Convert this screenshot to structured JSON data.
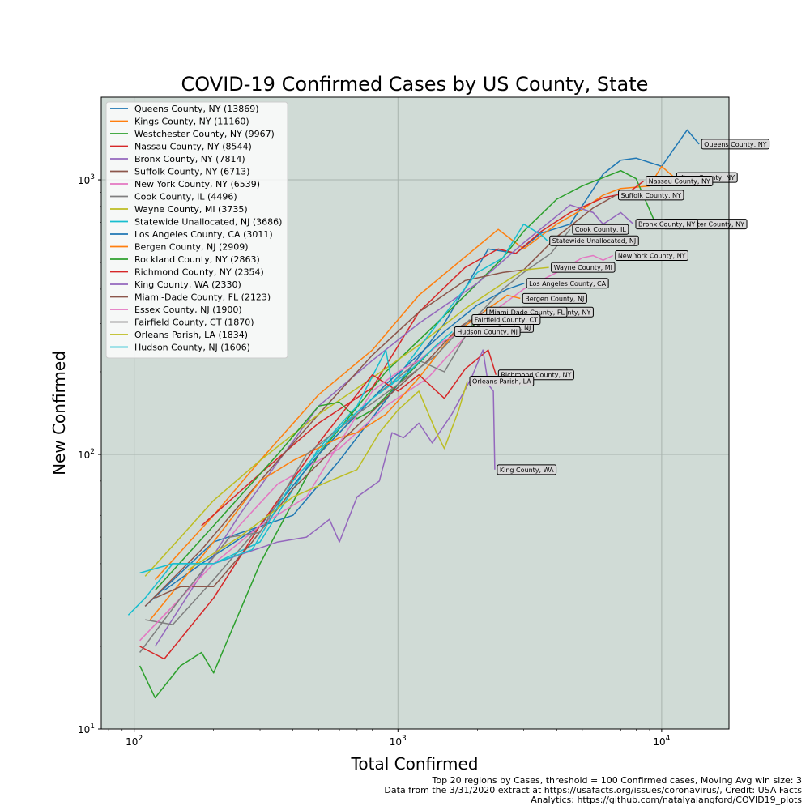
{
  "chart_data": {
    "type": "line",
    "title": "COVID-19  Confirmed Cases by US County, State",
    "xlabel": "Total Confirmed",
    "ylabel": "New Confirmed",
    "xscale": "log",
    "yscale": "log",
    "xlim": [
      75,
      18000
    ],
    "ylim": [
      10,
      2000
    ],
    "grid": true,
    "legend_position": "top-left",
    "plot_background": "#d0dbd6",
    "x_ticks": [
      {
        "value": 100,
        "label": "10",
        "sup": "2"
      },
      {
        "value": 1000,
        "label": "10",
        "sup": "3"
      },
      {
        "value": 10000,
        "label": "10",
        "sup": "4"
      }
    ],
    "y_ticks": [
      {
        "value": 10,
        "label": "10",
        "sup": "1"
      },
      {
        "value": 100,
        "label": "10",
        "sup": "2"
      },
      {
        "value": 1000,
        "label": "10",
        "sup": "3"
      }
    ],
    "series": [
      {
        "name": "Queens County, NY (13869)",
        "annotation": "Queens County, NY",
        "color": "#1f77b4",
        "points": [
          [
            110,
            28
          ],
          [
            200,
            48
          ],
          [
            400,
            60
          ],
          [
            600,
            95
          ],
          [
            1000,
            180
          ],
          [
            1500,
            300
          ],
          [
            2200,
            560
          ],
          [
            2800,
            540
          ],
          [
            3500,
            640
          ],
          [
            4500,
            690
          ],
          [
            6000,
            1050
          ],
          [
            7000,
            1180
          ],
          [
            8000,
            1200
          ],
          [
            10000,
            1120
          ],
          [
            12500,
            1520
          ],
          [
            13869,
            1350
          ]
        ]
      },
      {
        "name": "Kings County, NY (11160)",
        "annotation": "Kings County, NY",
        "color": "#ff7f0e",
        "points": [
          [
            120,
            35
          ],
          [
            200,
            60
          ],
          [
            300,
            95
          ],
          [
            500,
            165
          ],
          [
            800,
            240
          ],
          [
            1200,
            380
          ],
          [
            2400,
            660
          ],
          [
            3000,
            560
          ],
          [
            4000,
            690
          ],
          [
            5000,
            780
          ],
          [
            6000,
            880
          ],
          [
            7000,
            930
          ],
          [
            9000,
            950
          ],
          [
            10000,
            1120
          ],
          [
            11160,
            1020
          ]
        ]
      },
      {
        "name": "Westchester County, NY (9967)",
        "annotation": "Westchester County, NY",
        "color": "#2ca02c",
        "points": [
          [
            105,
            17
          ],
          [
            120,
            13
          ],
          [
            150,
            17
          ],
          [
            180,
            19
          ],
          [
            200,
            16
          ],
          [
            300,
            40
          ],
          [
            500,
            100
          ],
          [
            900,
            200
          ],
          [
            1400,
            300
          ],
          [
            2000,
            420
          ],
          [
            2500,
            520
          ],
          [
            3000,
            650
          ],
          [
            4000,
            850
          ],
          [
            5000,
            950
          ],
          [
            7000,
            1080
          ],
          [
            8000,
            1010
          ],
          [
            9500,
            690
          ],
          [
            9967,
            690
          ]
        ]
      },
      {
        "name": "Nassau County, NY (8544)",
        "annotation": "Nassau County, NY",
        "color": "#d62728",
        "points": [
          [
            180,
            55
          ],
          [
            300,
            85
          ],
          [
            500,
            130
          ],
          [
            800,
            175
          ],
          [
            1200,
            330
          ],
          [
            1800,
            480
          ],
          [
            2400,
            560
          ],
          [
            2800,
            540
          ],
          [
            3500,
            650
          ],
          [
            4500,
            760
          ],
          [
            6000,
            860
          ],
          [
            7500,
            900
          ],
          [
            8544,
            990
          ]
        ]
      },
      {
        "name": "Bronx County, NY (7814)",
        "annotation": "Bronx County, NY",
        "color": "#9467bd",
        "points": [
          [
            120,
            20
          ],
          [
            250,
            60
          ],
          [
            500,
            150
          ],
          [
            800,
            220
          ],
          [
            1200,
            300
          ],
          [
            2000,
            420
          ],
          [
            3000,
            590
          ],
          [
            4500,
            810
          ],
          [
            5500,
            760
          ],
          [
            6000,
            690
          ],
          [
            7000,
            760
          ],
          [
            7814,
            690
          ]
        ]
      },
      {
        "name": "Suffolk County, NY (6713)",
        "annotation": "Suffolk County, NY",
        "color": "#8c564b",
        "points": [
          [
            110,
            28
          ],
          [
            180,
            45
          ],
          [
            300,
            80
          ],
          [
            500,
            140
          ],
          [
            800,
            230
          ],
          [
            1200,
            330
          ],
          [
            1800,
            430
          ],
          [
            2500,
            460
          ],
          [
            3000,
            470
          ],
          [
            4000,
            620
          ],
          [
            5500,
            790
          ],
          [
            6713,
            880
          ]
        ]
      },
      {
        "name": "New York County, NY (6539)",
        "annotation": "New York County, NY",
        "color": "#e377c2",
        "points": [
          [
            105,
            21
          ],
          [
            150,
            30
          ],
          [
            250,
            55
          ],
          [
            350,
            78
          ],
          [
            600,
            105
          ],
          [
            900,
            150
          ],
          [
            1300,
            190
          ],
          [
            2000,
            300
          ],
          [
            3000,
            400
          ],
          [
            4000,
            460
          ],
          [
            5000,
            520
          ],
          [
            5500,
            530
          ],
          [
            6000,
            510
          ],
          [
            6539,
            530
          ]
        ]
      },
      {
        "name": "Cook County, IL (4496)",
        "annotation": "Cook County, IL",
        "color": "#7f7f7f",
        "points": [
          [
            110,
            25
          ],
          [
            140,
            24
          ],
          [
            200,
            35
          ],
          [
            300,
            55
          ],
          [
            500,
            100
          ],
          [
            800,
            160
          ],
          [
            1200,
            220
          ],
          [
            1500,
            200
          ],
          [
            2000,
            320
          ],
          [
            2500,
            400
          ],
          [
            3000,
            460
          ],
          [
            3800,
            540
          ],
          [
            4496,
            660
          ]
        ]
      },
      {
        "name": "Wayne County, MI (3735)",
        "annotation": "Wayne County, MI",
        "color": "#bcbd22",
        "points": [
          [
            110,
            36
          ],
          [
            150,
            50
          ],
          [
            200,
            68
          ],
          [
            300,
            95
          ],
          [
            500,
            140
          ],
          [
            800,
            190
          ],
          [
            1200,
            250
          ],
          [
            1800,
            340
          ],
          [
            2500,
            420
          ],
          [
            3000,
            470
          ],
          [
            3735,
            480
          ]
        ]
      },
      {
        "name": "Statewide Unallocated, NJ (3686)",
        "annotation": "Statewide Unallocated, NJ",
        "color": "#17becf",
        "points": [
          [
            95,
            26
          ],
          [
            110,
            30
          ],
          [
            140,
            40
          ],
          [
            200,
            40
          ],
          [
            300,
            48
          ],
          [
            500,
            105
          ],
          [
            700,
            150
          ],
          [
            900,
            240
          ],
          [
            950,
            180
          ],
          [
            1300,
            270
          ],
          [
            2000,
            460
          ],
          [
            2500,
            520
          ],
          [
            3000,
            690
          ],
          [
            3500,
            630
          ],
          [
            3686,
            600
          ]
        ]
      },
      {
        "name": "Los Angeles County, CA (3011)",
        "annotation": "Los Angeles County, CA",
        "color": "#1f77b4",
        "points": [
          [
            130,
            32
          ],
          [
            180,
            40
          ],
          [
            300,
            55
          ],
          [
            500,
            100
          ],
          [
            900,
            180
          ],
          [
            1500,
            280
          ],
          [
            2000,
            350
          ],
          [
            2600,
            400
          ],
          [
            3011,
            420
          ]
        ]
      },
      {
        "name": "Bergen County, NJ (2909)",
        "annotation": "Bergen County, NJ",
        "color": "#ff7f0e",
        "points": [
          [
            115,
            25
          ],
          [
            200,
            48
          ],
          [
            300,
            80
          ],
          [
            400,
            95
          ],
          [
            600,
            115
          ],
          [
            700,
            120
          ],
          [
            900,
            140
          ],
          [
            1200,
            190
          ],
          [
            1600,
            270
          ],
          [
            2200,
            340
          ],
          [
            2600,
            380
          ],
          [
            2909,
            370
          ]
        ]
      },
      {
        "name": "Rockland County, NY (2863)",
        "annotation": "Rockland County, NY",
        "color": "#2ca02c",
        "points": [
          [
            120,
            32
          ],
          [
            200,
            55
          ],
          [
            350,
            100
          ],
          [
            500,
            150
          ],
          [
            600,
            155
          ],
          [
            700,
            135
          ],
          [
            800,
            145
          ],
          [
            1000,
            180
          ],
          [
            1400,
            250
          ],
          [
            2000,
            300
          ],
          [
            2500,
            320
          ],
          [
            2863,
            330
          ]
        ]
      },
      {
        "name": "Richmond County, NY (2354)",
        "annotation": "Richmond County, NY",
        "color": "#d62728",
        "points": [
          [
            105,
            20
          ],
          [
            130,
            18
          ],
          [
            200,
            30
          ],
          [
            300,
            55
          ],
          [
            500,
            110
          ],
          [
            800,
            195
          ],
          [
            1000,
            170
          ],
          [
            1200,
            195
          ],
          [
            1500,
            160
          ],
          [
            1800,
            205
          ],
          [
            2200,
            240
          ],
          [
            2354,
            195
          ]
        ]
      },
      {
        "name": "King County, WA (2330)",
        "annotation": "King County, WA",
        "color": "#9467bd",
        "points": [
          [
            200,
            40
          ],
          [
            350,
            48
          ],
          [
            450,
            50
          ],
          [
            550,
            58
          ],
          [
            600,
            48
          ],
          [
            700,
            70
          ],
          [
            850,
            80
          ],
          [
            950,
            120
          ],
          [
            1050,
            115
          ],
          [
            1200,
            130
          ],
          [
            1350,
            110
          ],
          [
            1600,
            140
          ],
          [
            1900,
            190
          ],
          [
            2100,
            240
          ],
          [
            2200,
            180
          ],
          [
            2300,
            170
          ],
          [
            2330,
            88
          ]
        ]
      },
      {
        "name": "Miami-Dade County, FL (2123)",
        "annotation": "Miami-Dade County, FL",
        "color": "#8c564b",
        "points": [
          [
            120,
            30
          ],
          [
            150,
            33
          ],
          [
            200,
            33
          ],
          [
            280,
            48
          ],
          [
            400,
            75
          ],
          [
            600,
            110
          ],
          [
            900,
            160
          ],
          [
            1300,
            220
          ],
          [
            1700,
            290
          ],
          [
            2123,
            330
          ]
        ]
      },
      {
        "name": "Essex County, NJ (1900)",
        "annotation": "Essex County, NJ",
        "color": "#e377c2",
        "points": [
          [
            115,
            23
          ],
          [
            200,
            40
          ],
          [
            300,
            55
          ],
          [
            450,
            70
          ],
          [
            600,
            110
          ],
          [
            800,
            170
          ],
          [
            1000,
            200
          ],
          [
            1200,
            220
          ],
          [
            1500,
            260
          ],
          [
            1900,
            290
          ]
        ]
      },
      {
        "name": "Fairfield County, CT (1870)",
        "annotation": "Fairfield County, CT",
        "color": "#7f7f7f",
        "points": [
          [
            105,
            19
          ],
          [
            150,
            30
          ],
          [
            230,
            50
          ],
          [
            300,
            52
          ],
          [
            450,
            100
          ],
          [
            700,
            140
          ],
          [
            1000,
            180
          ],
          [
            1400,
            230
          ],
          [
            1870,
            310
          ]
        ]
      },
      {
        "name": "Orleans Parish, LA (1834)",
        "annotation": "Orleans Parish, LA",
        "color": "#bcbd22",
        "points": [
          [
            160,
            38
          ],
          [
            250,
            50
          ],
          [
            400,
            70
          ],
          [
            550,
            80
          ],
          [
            700,
            88
          ],
          [
            850,
            120
          ],
          [
            1000,
            145
          ],
          [
            1200,
            170
          ],
          [
            1400,
            120
          ],
          [
            1500,
            105
          ],
          [
            1700,
            145
          ],
          [
            1834,
            185
          ]
        ]
      },
      {
        "name": "Hudson County, NJ (1606)",
        "annotation": "Hudson County, NJ",
        "color": "#17becf",
        "points": [
          [
            105,
            37
          ],
          [
            140,
            40
          ],
          [
            200,
            40
          ],
          [
            280,
            45
          ],
          [
            400,
            80
          ],
          [
            600,
            125
          ],
          [
            800,
            160
          ],
          [
            1100,
            200
          ],
          [
            1400,
            250
          ],
          [
            1606,
            280
          ]
        ]
      }
    ]
  },
  "footer": {
    "line1": "Top 20 regions by Cases, threshold = 100 Confirmed cases, Moving Avg win size: 3",
    "line2": "Data from the 3/31/2020 extract at https://usafacts.org/issues/coronavirus/, Credit: USA Facts",
    "line3": "Analytics: https://github.com/natalyalangford/COVID19_plots"
  }
}
